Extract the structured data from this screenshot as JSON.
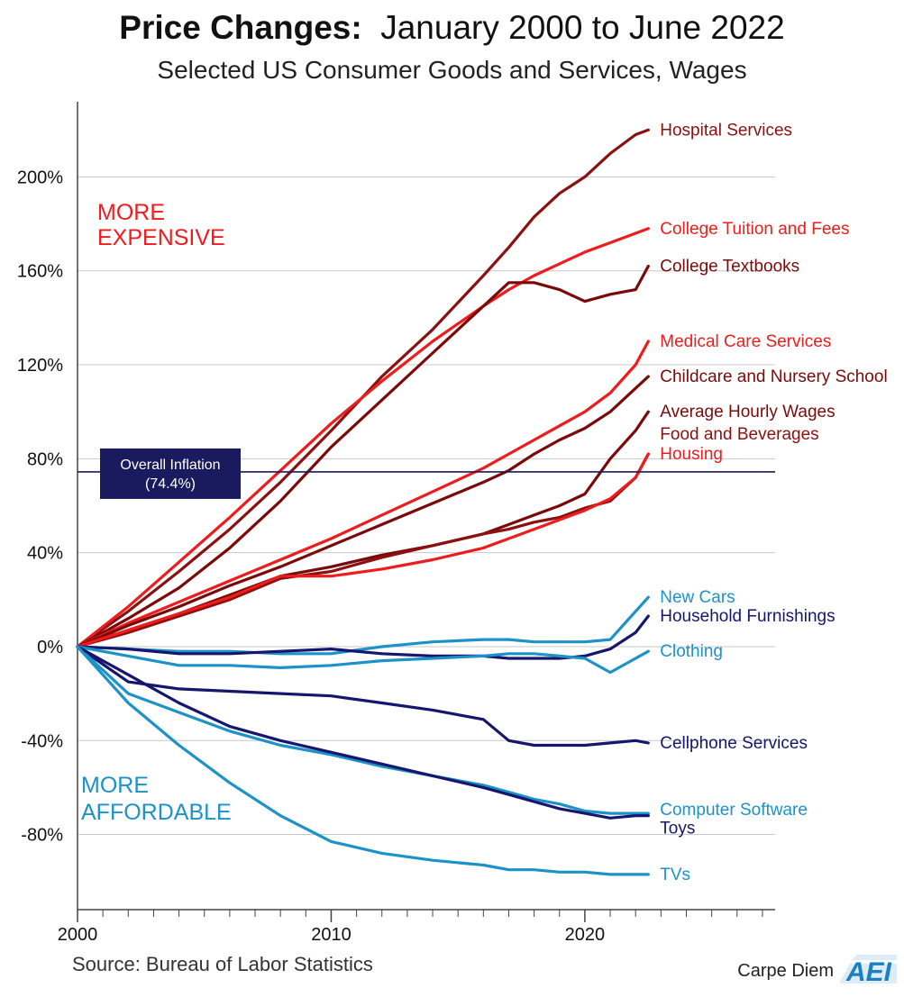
{
  "title_bold": "Price Changes:",
  "title_rest": "January 2000 to June 2022",
  "subtitle": "Selected US Consumer Goods and Services, Wages",
  "source": "Source: Bureau of Labor Statistics",
  "brand": {
    "text": "Carpe Diem",
    "logo": "AEI"
  },
  "annotations": {
    "more_expensive": [
      "MORE",
      "EXPENSIVE"
    ],
    "more_affordable": [
      "MORE",
      "AFFORDABLE"
    ],
    "inflation": [
      "Overall Inflation",
      "(74.4%)"
    ]
  },
  "chart_data": {
    "type": "line",
    "title": "Price Changes: January 2000 to June 2022",
    "subtitle": "Selected US Consumer Goods and Services, Wages",
    "xlabel": "",
    "ylabel": "",
    "x": [
      2000,
      2002,
      2004,
      2006,
      2008,
      2010,
      2012,
      2014,
      2016,
      2017,
      2018,
      2019,
      2020,
      2021,
      2022,
      2022.5
    ],
    "xlim": [
      2000,
      2027.5
    ],
    "ylim": [
      -112,
      232
    ],
    "yticks": [
      200,
      160,
      120,
      80,
      40,
      0,
      -40,
      -80
    ],
    "ytick_labels": [
      "200%",
      "160%",
      "120%",
      "80%",
      "40%",
      "0%",
      "-40%",
      "-80%"
    ],
    "xticks": [
      2000,
      2010,
      2020
    ],
    "xtick_labels": [
      "2000",
      "2010",
      "2020"
    ],
    "reference_line": {
      "label": "Overall Inflation (74.4%)",
      "value": 74.4,
      "color": "#1a1a5e"
    },
    "grid": true,
    "series": [
      {
        "name": "Hospital Services",
        "color": "#8b1010",
        "values": [
          0,
          15,
          32,
          50,
          70,
          92,
          115,
          135,
          158,
          170,
          183,
          193,
          200,
          210,
          218,
          220
        ]
      },
      {
        "name": "College Tuition and Fees",
        "color": "#ee1c1c",
        "values": [
          0,
          17,
          36,
          55,
          75,
          95,
          113,
          130,
          145,
          152,
          158,
          163,
          168,
          172,
          176,
          178
        ]
      },
      {
        "name": "College Textbooks",
        "color": "#7a0a0a",
        "values": [
          0,
          12,
          25,
          42,
          62,
          85,
          105,
          125,
          145,
          155,
          155,
          152,
          147,
          150,
          152,
          162
        ]
      },
      {
        "name": "Medical Care Services",
        "color": "#ee1c1c",
        "values": [
          0,
          10,
          19,
          28,
          37,
          46,
          56,
          66,
          76,
          82,
          88,
          94,
          100,
          108,
          120,
          130
        ]
      },
      {
        "name": "Childcare and Nursery School",
        "color": "#7a0a0a",
        "values": [
          0,
          9,
          17,
          26,
          34,
          43,
          52,
          61,
          70,
          75,
          82,
          88,
          93,
          100,
          110,
          115
        ]
      },
      {
        "name": "Average Hourly Wages",
        "color": "#7a0a0a",
        "values": [
          0,
          7,
          14,
          22,
          30,
          34,
          39,
          43,
          48,
          52,
          56,
          60,
          65,
          80,
          92,
          100
        ]
      },
      {
        "name": "Food and Beverages",
        "color": "#8b1010",
        "values": [
          0,
          6,
          13,
          20,
          29,
          32,
          38,
          43,
          48,
          50,
          53,
          55,
          59,
          62,
          72,
          82
        ]
      },
      {
        "name": "Housing",
        "color": "#ee1c1c",
        "values": [
          0,
          7,
          14,
          21,
          30,
          30,
          33,
          37,
          42,
          46,
          50,
          54,
          58,
          63,
          72,
          82
        ]
      },
      {
        "name": "New Cars",
        "color": "#1c92c8",
        "values": [
          0,
          -1,
          -2,
          -2,
          -3,
          -3,
          0,
          2,
          3,
          3,
          2,
          2,
          2,
          3,
          15,
          21
        ]
      },
      {
        "name": "Household Furnishings",
        "color": "#16166e",
        "values": [
          0,
          -1,
          -3,
          -3,
          -2,
          -1,
          -3,
          -4,
          -4,
          -5,
          -5,
          -5,
          -4,
          -1,
          6,
          13
        ]
      },
      {
        "name": "Clothing",
        "color": "#1c92c8",
        "values": [
          0,
          -4,
          -8,
          -8,
          -9,
          -8,
          -6,
          -5,
          -4,
          -3,
          -3,
          -4,
          -5,
          -11,
          -5,
          -2
        ]
      },
      {
        "name": "Cellphone Services",
        "color": "#16166e",
        "values": [
          0,
          -15,
          -18,
          -19,
          -20,
          -21,
          -24,
          -27,
          -31,
          -40,
          -42,
          -42,
          -42,
          -41,
          -40,
          -41
        ]
      },
      {
        "name": "Computer Software",
        "color": "#1c92c8",
        "values": [
          0,
          -20,
          -28,
          -36,
          -42,
          -46,
          -51,
          -55,
          -59,
          -62,
          -65,
          -67,
          -70,
          -71,
          -71,
          -71
        ]
      },
      {
        "name": "Toys",
        "color": "#16166e",
        "values": [
          0,
          -12,
          -24,
          -34,
          -40,
          -45,
          -50,
          -55,
          -60,
          -63,
          -66,
          -69,
          -71,
          -73,
          -72,
          -72
        ]
      },
      {
        "name": "TVs",
        "color": "#1c92c8",
        "values": [
          0,
          -24,
          -42,
          -58,
          -72,
          -83,
          -88,
          -91,
          -93,
          -95,
          -95,
          -96,
          -96,
          -97,
          -97,
          -97
        ]
      }
    ]
  }
}
